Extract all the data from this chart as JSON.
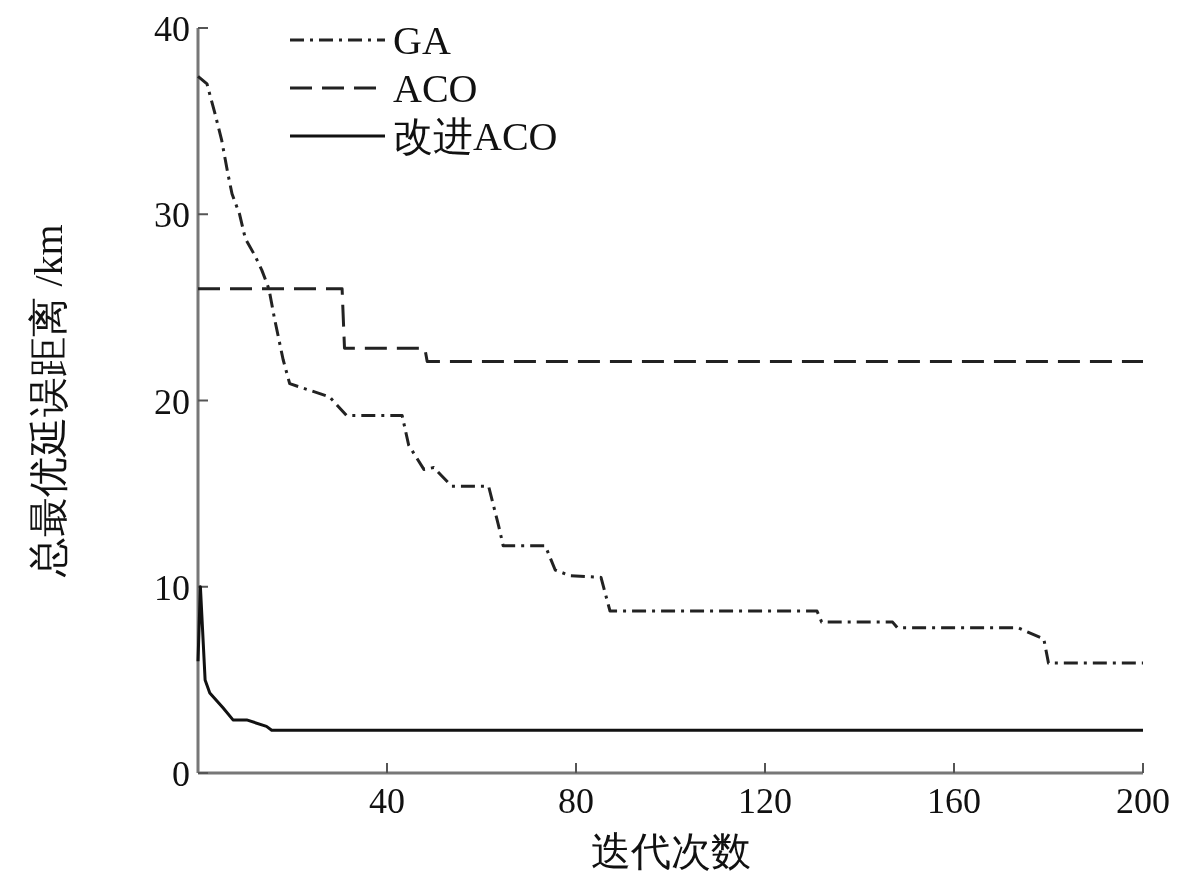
{
  "chart_data": {
    "type": "line",
    "xlabel": "迭代次数",
    "ylabel": "总最优延误距离 /km",
    "xlim": [
      0,
      200
    ],
    "ylim": [
      0,
      40
    ],
    "xticks": [
      40,
      80,
      120,
      160,
      200
    ],
    "yticks": [
      0,
      10,
      20,
      30,
      40
    ],
    "legend": "top left",
    "grid": false,
    "series": [
      {
        "name": "GA",
        "color": "#222222",
        "line_style": "dashdot",
        "x": [
          0,
          1.9,
          3.6,
          5,
          6.3,
          7.2,
          8.8,
          10,
          12,
          13.5,
          15,
          16.2,
          18,
          19.4,
          27.8,
          31.4,
          43.2,
          44.6,
          47.8,
          49.9,
          53.7,
          61.5,
          63.6,
          64.6,
          73.5,
          75.6,
          78.7,
          85.3,
          87.2,
          131,
          132,
          147,
          148,
          173.5,
          179,
          180,
          200
        ],
        "values": [
          37.4,
          37,
          35.4,
          34,
          32.2,
          31.1,
          30,
          28.7,
          27.8,
          27,
          26,
          24.4,
          22.2,
          20.9,
          20.2,
          19.2,
          19.2,
          17.6,
          16.3,
          16.4,
          15.4,
          15.4,
          13.3,
          12.2,
          12.2,
          10.9,
          10.6,
          10.5,
          8.7,
          8.7,
          8.1,
          8.1,
          7.8,
          7.8,
          7.2,
          5.9,
          5.9
        ]
      },
      {
        "name": "ACO",
        "color": "#222222",
        "line_style": "dashed",
        "x": [
          0,
          30.5,
          31,
          48,
          48.5,
          200
        ],
        "values": [
          26,
          26,
          22.8,
          22.8,
          22.1,
          22.1
        ]
      },
      {
        "name": "改进ACO",
        "color": "#111111",
        "line_style": "solid",
        "x": [
          0,
          0.5,
          1.5,
          2.5,
          5.3,
          7.4,
          10.3,
          14.5,
          15.6,
          200
        ],
        "values": [
          6,
          10,
          5,
          4.3,
          3.5,
          2.85,
          2.85,
          2.5,
          2.3,
          2.3
        ]
      }
    ]
  }
}
